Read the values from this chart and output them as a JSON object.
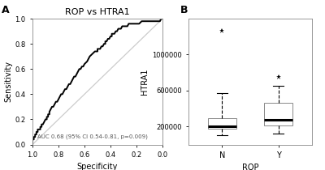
{
  "panel_A": {
    "title": "ROP vs HTRA1",
    "xlabel": "Specificity",
    "ylabel": "Sensitivity",
    "auc_text": "AUC 0.68 (95% CI 0.54-0.81, p=0.009)",
    "xlim": [
      1.0,
      0.0
    ],
    "ylim": [
      0.0,
      1.0
    ],
    "xticks": [
      1.0,
      0.8,
      0.6,
      0.4,
      0.2,
      0.0
    ],
    "yticks": [
      0.0,
      0.2,
      0.4,
      0.6,
      0.8,
      1.0
    ]
  },
  "panel_B": {
    "xlabel": "ROP",
    "ylabel": "HTRA1",
    "group_N": {
      "whisker_low": 105000,
      "q1": 175000,
      "median": 205000,
      "q3": 295000,
      "whisker_high": 575000,
      "outliers": [
        1270000
      ]
    },
    "group_Y": {
      "whisker_low": 122000,
      "q1": 215000,
      "median": 275000,
      "q3": 460000,
      "whisker_high": 650000,
      "outliers": [
        755000
      ]
    },
    "ylim": [
      0,
      1400000
    ],
    "yticks": [
      200000,
      600000,
      1000000
    ],
    "ytick_labels": [
      "200000",
      "600000",
      "1000000"
    ],
    "xtick_labels": [
      "N",
      "Y"
    ]
  }
}
